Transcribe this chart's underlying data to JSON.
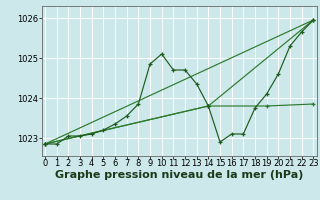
{
  "background_color": "#cce8ea",
  "grid_color": "#ffffff",
  "line_color_dark": "#1e5c1e",
  "line_color_mid": "#2d7a2d",
  "xlabel": "Graphe pression niveau de la mer (hPa)",
  "xlabel_fontsize": 8,
  "tick_fontsize": 6,
  "yticks": [
    1023,
    1024,
    1025,
    1026
  ],
  "xticks": [
    0,
    1,
    2,
    3,
    4,
    5,
    6,
    7,
    8,
    9,
    10,
    11,
    12,
    13,
    14,
    15,
    16,
    17,
    18,
    19,
    20,
    21,
    22,
    23
  ],
  "xlim": [
    -0.3,
    23.3
  ],
  "ylim": [
    1022.55,
    1026.3
  ],
  "series1": {
    "x": [
      0,
      1,
      2,
      3,
      4,
      5,
      6,
      7,
      8,
      9,
      10,
      11,
      12,
      13,
      14,
      15,
      16,
      17,
      18,
      19,
      20,
      21,
      22,
      23
    ],
    "y": [
      1022.85,
      1022.85,
      1023.05,
      1023.05,
      1023.1,
      1023.2,
      1023.35,
      1023.55,
      1023.85,
      1024.85,
      1025.1,
      1024.7,
      1024.7,
      1024.35,
      1023.8,
      1022.9,
      1023.1,
      1023.1,
      1023.75,
      1024.1,
      1024.6,
      1025.3,
      1025.65,
      1025.95
    ]
  },
  "series2": {
    "x": [
      0,
      23
    ],
    "y": [
      1022.85,
      1025.95
    ]
  },
  "series3": {
    "x": [
      0,
      14,
      23
    ],
    "y": [
      1022.85,
      1023.8,
      1025.95
    ]
  },
  "series4": {
    "x": [
      0,
      14,
      19,
      23
    ],
    "y": [
      1022.85,
      1023.8,
      1023.8,
      1023.85
    ]
  }
}
